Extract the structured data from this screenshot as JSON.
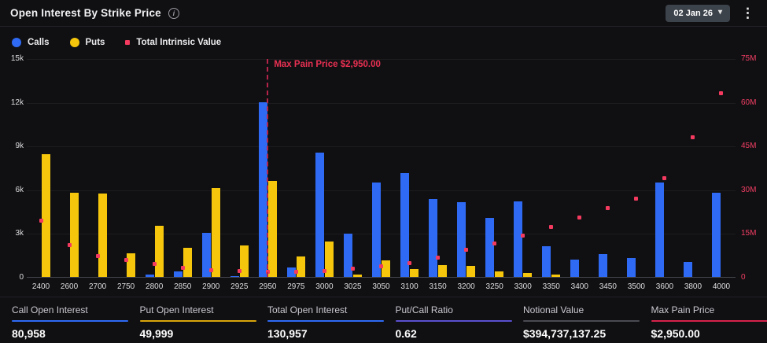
{
  "header": {
    "title": "Open Interest By Strike Price",
    "date_selector": "02 Jan 26"
  },
  "icons": {
    "info": "i",
    "chevron_down": "▾",
    "kebab": "⋮"
  },
  "legend": [
    {
      "label": "Calls",
      "color": "#2F6AF5",
      "shape": "circle"
    },
    {
      "label": "Puts",
      "color": "#F5C60B",
      "shape": "circle"
    },
    {
      "label": "Total Intrinsic Value",
      "color": "#F43A5E",
      "shape": "square"
    }
  ],
  "chart_data": {
    "type": "bar",
    "title": "Open Interest By Strike Price",
    "categories": [
      2400,
      2600,
      2700,
      2750,
      2800,
      2850,
      2900,
      2925,
      2950,
      2975,
      3000,
      3025,
      3050,
      3100,
      3150,
      3200,
      3250,
      3300,
      3350,
      3400,
      3450,
      3500,
      3600,
      3800,
      4000
    ],
    "series": [
      {
        "name": "Calls",
        "type": "bar",
        "axis": "left",
        "color": "#2F6AF5",
        "values": [
          0,
          0,
          0,
          0,
          150,
          400,
          3040,
          80,
          12000,
          650,
          8500,
          2950,
          6500,
          7100,
          5350,
          5100,
          4050,
          5180,
          2100,
          1200,
          1550,
          1290,
          6460,
          1030,
          5800
        ]
      },
      {
        "name": "Puts",
        "type": "bar",
        "axis": "left",
        "color": "#F5C60B",
        "values": [
          8400,
          5800,
          5700,
          1600,
          3500,
          2000,
          6100,
          2180,
          6600,
          1400,
          2430,
          150,
          1150,
          520,
          830,
          760,
          400,
          250,
          160,
          0,
          0,
          0,
          0,
          0,
          0
        ]
      },
      {
        "name": "Total Intrinsic Value",
        "type": "scatter",
        "axis": "right",
        "color": "#F43A5E",
        "values": [
          19200000,
          10900000,
          7100000,
          5700000,
          4400000,
          3100000,
          2200000,
          1900000,
          1500000,
          1700000,
          2000000,
          2600000,
          3500000,
          4500000,
          6500000,
          9100000,
          11300000,
          14000000,
          16900000,
          20300000,
          23600000,
          26600000,
          33600000,
          47800000,
          62900000
        ]
      }
    ],
    "left_axis": {
      "ticks": [
        "0",
        "3k",
        "6k",
        "9k",
        "12k",
        "15k"
      ],
      "min": 0,
      "max": 15000,
      "color": "#dfdfe2"
    },
    "right_axis": {
      "ticks": [
        "0",
        "15M",
        "30M",
        "45M",
        "60M",
        "75M"
      ],
      "min": 0,
      "max": 75000000,
      "color": "#f23e63"
    },
    "grid": true,
    "legend_position": "top-left",
    "annotation": {
      "label": "Max Pain Price $2,950.00",
      "strike": 2950,
      "color": "#ea3052"
    }
  },
  "stats": [
    {
      "label": "Call Open Interest",
      "value": "80,958",
      "rule_color": "#2F6AF5"
    },
    {
      "label": "Put Open Interest",
      "value": "49,999",
      "rule_color": "#D9A50B"
    },
    {
      "label": "Total Open Interest",
      "value": "130,957",
      "rule_color": "#2F6AF5"
    },
    {
      "label": "Put/Call Ratio",
      "value": "0.62",
      "rule_color": "#5A4FD0"
    },
    {
      "label": "Notional Value",
      "value": "$394,737,137.25",
      "rule_color": "#4A4A52"
    },
    {
      "label": "Max Pain Price",
      "value": "$2,950.00",
      "rule_color": "#D6224A"
    }
  ]
}
